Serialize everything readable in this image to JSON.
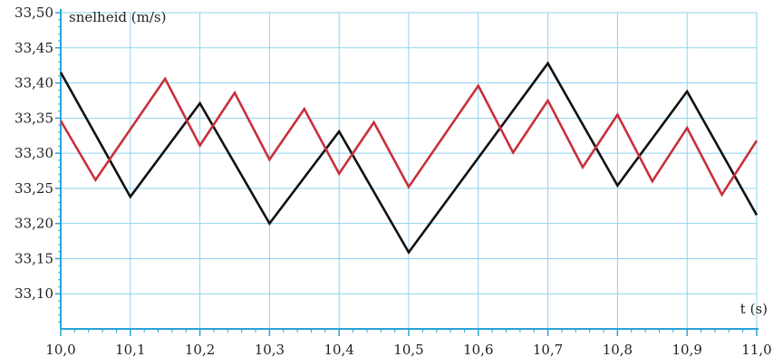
{
  "chart_data": {
    "type": "line",
    "ylabel": "snelheid (m/s)",
    "xlabel": "t (s)",
    "xlim": [
      10.0,
      11.0
    ],
    "ylim": [
      33.05,
      33.5
    ],
    "x_ticks": [
      "10,0",
      "10,1",
      "10,2",
      "10,3",
      "10,4",
      "10,5",
      "10,6",
      "10,7",
      "10,8",
      "10,9",
      "11,0"
    ],
    "y_ticks": [
      "33,10",
      "33,15",
      "33,20",
      "33,25",
      "33,30",
      "33,35",
      "33,40",
      "33,45",
      "33,50"
    ],
    "grid": true,
    "series": [
      {
        "color": "#111111",
        "x": [
          10.0,
          10.1,
          10.2,
          10.3,
          10.4,
          10.5,
          10.7,
          10.8,
          10.9,
          11.0
        ],
        "y": [
          33.415,
          33.238,
          33.371,
          33.2,
          33.331,
          33.159,
          33.428,
          33.254,
          33.388,
          33.212
        ]
      },
      {
        "color": "#c8303c",
        "x": [
          10.0,
          10.05,
          10.15,
          10.2,
          10.25,
          10.3,
          10.35,
          10.4,
          10.45,
          10.5,
          10.6,
          10.65,
          10.7,
          10.75,
          10.8,
          10.85,
          10.9,
          10.95,
          11.0
        ],
        "y": [
          33.346,
          33.262,
          33.406,
          33.311,
          33.386,
          33.291,
          33.363,
          33.271,
          33.344,
          33.252,
          33.396,
          33.301,
          33.375,
          33.28,
          33.355,
          33.26,
          33.336,
          33.241,
          33.318
        ]
      }
    ]
  }
}
